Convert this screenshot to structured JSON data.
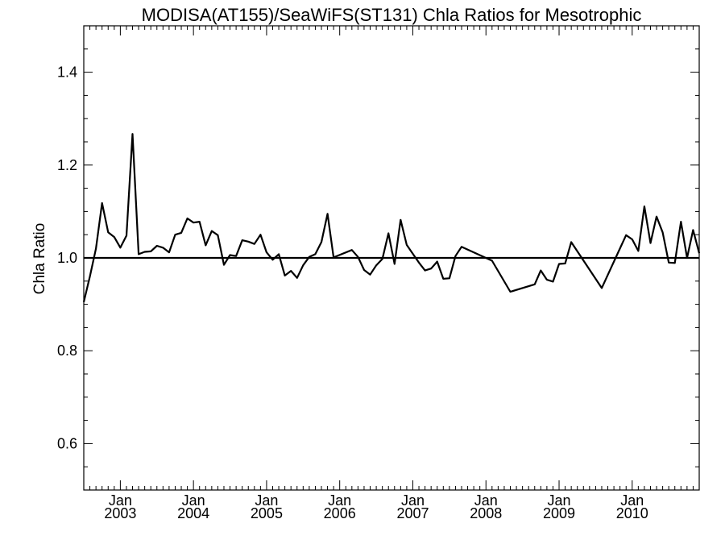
{
  "chart_data": {
    "type": "line",
    "title": "MODISA(AT155)/SeaWiFS(ST131)  Chla Ratios for Mesotrophic",
    "xlabel": "",
    "ylabel": "Chla Ratio",
    "x_range": [
      "2002-07",
      "2010-12"
    ],
    "ylim": [
      0.5,
      1.5
    ],
    "y_ticks": [
      0.6,
      0.8,
      1.0,
      1.2,
      1.4
    ],
    "y_tick_labels": [
      "0.6",
      "0.8",
      "1.0",
      "1.2",
      "1.4"
    ],
    "x_ticks": [
      {
        "date": "2003-01",
        "month": "Jan",
        "year": "2003"
      },
      {
        "date": "2004-01",
        "month": "Jan",
        "year": "2004"
      },
      {
        "date": "2005-01",
        "month": "Jan",
        "year": "2005"
      },
      {
        "date": "2006-01",
        "month": "Jan",
        "year": "2006"
      },
      {
        "date": "2007-01",
        "month": "Jan",
        "year": "2007"
      },
      {
        "date": "2008-01",
        "month": "Jan",
        "year": "2008"
      },
      {
        "date": "2009-01",
        "month": "Jan",
        "year": "2009"
      },
      {
        "date": "2010-01",
        "month": "Jan",
        "year": "2010"
      }
    ],
    "reference_line": 1.0,
    "grid": false,
    "series": [
      {
        "points": [
          [
            "2002-07",
            0.905
          ],
          [
            "2002-08",
            0.96
          ],
          [
            "2002-09",
            1.02
          ],
          [
            "2002-10",
            1.118
          ],
          [
            "2002-11",
            1.055
          ],
          [
            "2002-12",
            1.045
          ],
          [
            "2003-01",
            1.022
          ],
          [
            "2003-02",
            1.048
          ],
          [
            "2003-03",
            1.267
          ],
          [
            "2003-04",
            1.008
          ],
          [
            "2003-05",
            1.013
          ],
          [
            "2003-06",
            1.014
          ],
          [
            "2003-07",
            1.026
          ],
          [
            "2003-08",
            1.022
          ],
          [
            "2003-09",
            1.012
          ],
          [
            "2003-10",
            1.05
          ],
          [
            "2003-11",
            1.054
          ],
          [
            "2003-12",
            1.085
          ],
          [
            "2004-01",
            1.076
          ],
          [
            "2004-02",
            1.078
          ],
          [
            "2004-03",
            1.027
          ],
          [
            "2004-04",
            1.058
          ],
          [
            "2004-05",
            1.049
          ],
          [
            "2004-06",
            0.985
          ],
          [
            "2004-07",
            1.006
          ],
          [
            "2004-08",
            1.004
          ],
          [
            "2004-09",
            1.038
          ],
          [
            "2004-10",
            1.035
          ],
          [
            "2004-11",
            1.03
          ],
          [
            "2004-12",
            1.05
          ],
          [
            "2005-01",
            1.012
          ],
          [
            "2005-02",
            0.996
          ],
          [
            "2005-03",
            1.008
          ],
          [
            "2005-04",
            0.962
          ],
          [
            "2005-05",
            0.972
          ],
          [
            "2005-06",
            0.957
          ],
          [
            "2005-07",
            0.984
          ],
          [
            "2005-08",
            1.002
          ],
          [
            "2005-09",
            1.008
          ],
          [
            "2005-10",
            1.034
          ],
          [
            "2005-11",
            1.095
          ],
          [
            "2005-12",
            1.001
          ],
          [
            "2006-03",
            1.017
          ],
          [
            "2006-04",
            1.002
          ],
          [
            "2006-05",
            0.974
          ],
          [
            "2006-06",
            0.964
          ],
          [
            "2006-07",
            0.984
          ],
          [
            "2006-08",
            0.998
          ],
          [
            "2006-09",
            1.053
          ],
          [
            "2006-10",
            0.987
          ],
          [
            "2006-11",
            1.082
          ],
          [
            "2006-12",
            1.028
          ],
          [
            "2007-02",
            0.99
          ],
          [
            "2007-03",
            0.973
          ],
          [
            "2007-04",
            0.977
          ],
          [
            "2007-05",
            0.992
          ],
          [
            "2007-06",
            0.955
          ],
          [
            "2007-07",
            0.956
          ],
          [
            "2007-08",
            1.004
          ],
          [
            "2007-09",
            1.024
          ],
          [
            "2008-02",
            0.994
          ],
          [
            "2008-05",
            0.927
          ],
          [
            "2008-09",
            0.943
          ],
          [
            "2008-10",
            0.973
          ],
          [
            "2008-11",
            0.953
          ],
          [
            "2008-12",
            0.949
          ],
          [
            "2009-01",
            0.987
          ],
          [
            "2009-02",
            0.988
          ],
          [
            "2009-03",
            1.034
          ],
          [
            "2009-08",
            0.935
          ],
          [
            "2009-12",
            1.049
          ],
          [
            "2010-01",
            1.04
          ],
          [
            "2010-02",
            1.015
          ],
          [
            "2010-03",
            1.111
          ],
          [
            "2010-04",
            1.032
          ],
          [
            "2010-05",
            1.089
          ],
          [
            "2010-06",
            1.055
          ],
          [
            "2010-07",
            0.99
          ],
          [
            "2010-08",
            0.989
          ],
          [
            "2010-09",
            1.078
          ],
          [
            "2010-10",
            1.0
          ],
          [
            "2010-11",
            1.06
          ],
          [
            "2010-12",
            1.01
          ]
        ]
      }
    ]
  }
}
